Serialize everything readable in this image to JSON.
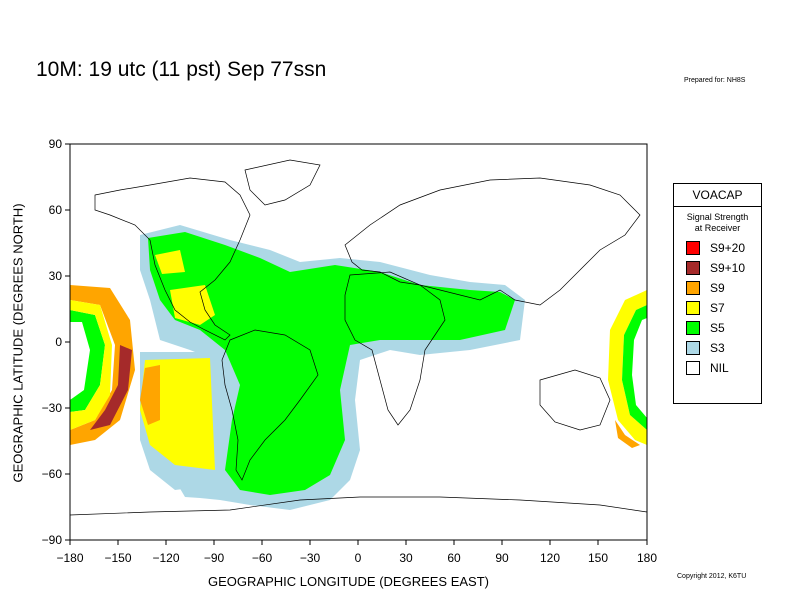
{
  "title": "10M:  19 utc (11 pst) Sep 77ssn",
  "prepared_for": "Prepared for: NH8S",
  "copyright": "Copyright 2012, K6TU",
  "x_axis_label": "GEOGRAPHIC LONGITUDE (DEGREES EAST)",
  "y_axis_label": "GEOGRAPHIC LATITUDE (DEGREES NORTH)",
  "x_ticks": [
    "−180",
    "−150",
    "−120",
    "−90",
    "−60",
    "−30",
    "0",
    "30",
    "60",
    "90",
    "120",
    "150",
    "180"
  ],
  "y_ticks": [
    "90",
    "60",
    "30",
    "0",
    "−30",
    "−60",
    "−90"
  ],
  "legend": {
    "title": "VOACAP",
    "subtitle_line1": "Signal Strength",
    "subtitle_line2": "at Receiver",
    "items": [
      {
        "label": "S9+20",
        "color": "#ff0000"
      },
      {
        "label": "S9+10",
        "color": "#a52a2a"
      },
      {
        "label": "S9",
        "color": "#ffa500"
      },
      {
        "label": "S7",
        "color": "#ffff00"
      },
      {
        "label": "S5",
        "color": "#00ff00"
      },
      {
        "label": "S3",
        "color": "#add8e6"
      },
      {
        "label": "NIL",
        "color": "#ffffff"
      }
    ]
  },
  "colors": {
    "s9": "#ffa500",
    "s9p10": "#a52a2a",
    "s7": "#ffff00",
    "s5": "#00ff00",
    "s3": "#add8e6"
  }
}
